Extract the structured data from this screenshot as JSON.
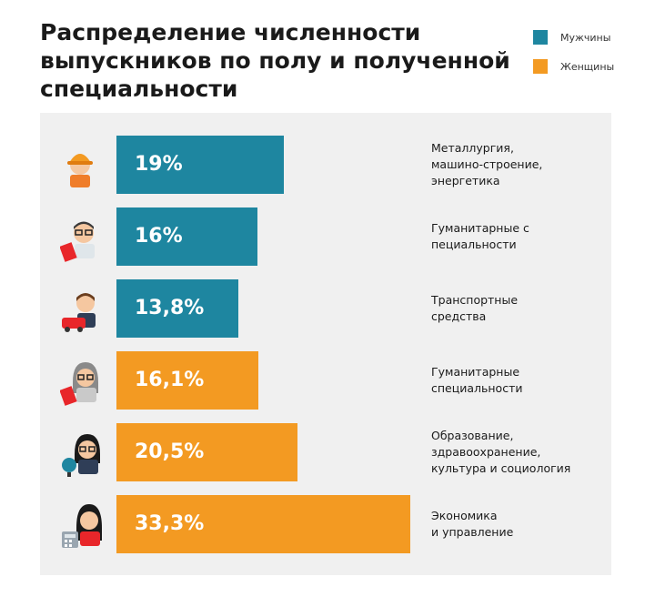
{
  "title": "Распределение численности\nвыпускников по полу и полученной\nспециальности",
  "legend": [
    {
      "label": "Мужчины",
      "color": "#1e86a0"
    },
    {
      "label": "Женщины",
      "color": "#f39a22"
    }
  ],
  "chart_data": {
    "type": "bar",
    "orientation": "horizontal",
    "title": "Распределение численности выпускников по полу и полученной специальности",
    "unit": "%",
    "series": [
      {
        "name": "Мужчины",
        "color": "#1e86a0"
      },
      {
        "name": "Женщины",
        "color": "#f39a22"
      }
    ],
    "rows": [
      {
        "category": "Металлургия,\nмашино-строение,\nэнергетика",
        "value": 19,
        "label": "19%",
        "series": "Мужчины",
        "icon": "engineer-icon"
      },
      {
        "category": "Гуманитарные с\nпециальности",
        "value": 16,
        "label": "16%",
        "series": "Мужчины",
        "icon": "male-teacher-icon"
      },
      {
        "category": "Транспортные\nсредства",
        "value": 13.8,
        "label": "13,8%",
        "series": "Мужчины",
        "icon": "driver-icon"
      },
      {
        "category": "Гуманитарные\nспециальности",
        "value": 16.1,
        "label": "16,1%",
        "series": "Женщины",
        "icon": "female-teacher-icon"
      },
      {
        "category": "Образование,\nздравоохранение,\nкультура и социология",
        "value": 20.5,
        "label": "20,5%",
        "series": "Женщины",
        "icon": "female-educator-icon"
      },
      {
        "category": "Экономика\nи управление",
        "value": 33.3,
        "label": "33,3%",
        "series": "Женщины",
        "icon": "accountant-icon"
      }
    ]
  }
}
